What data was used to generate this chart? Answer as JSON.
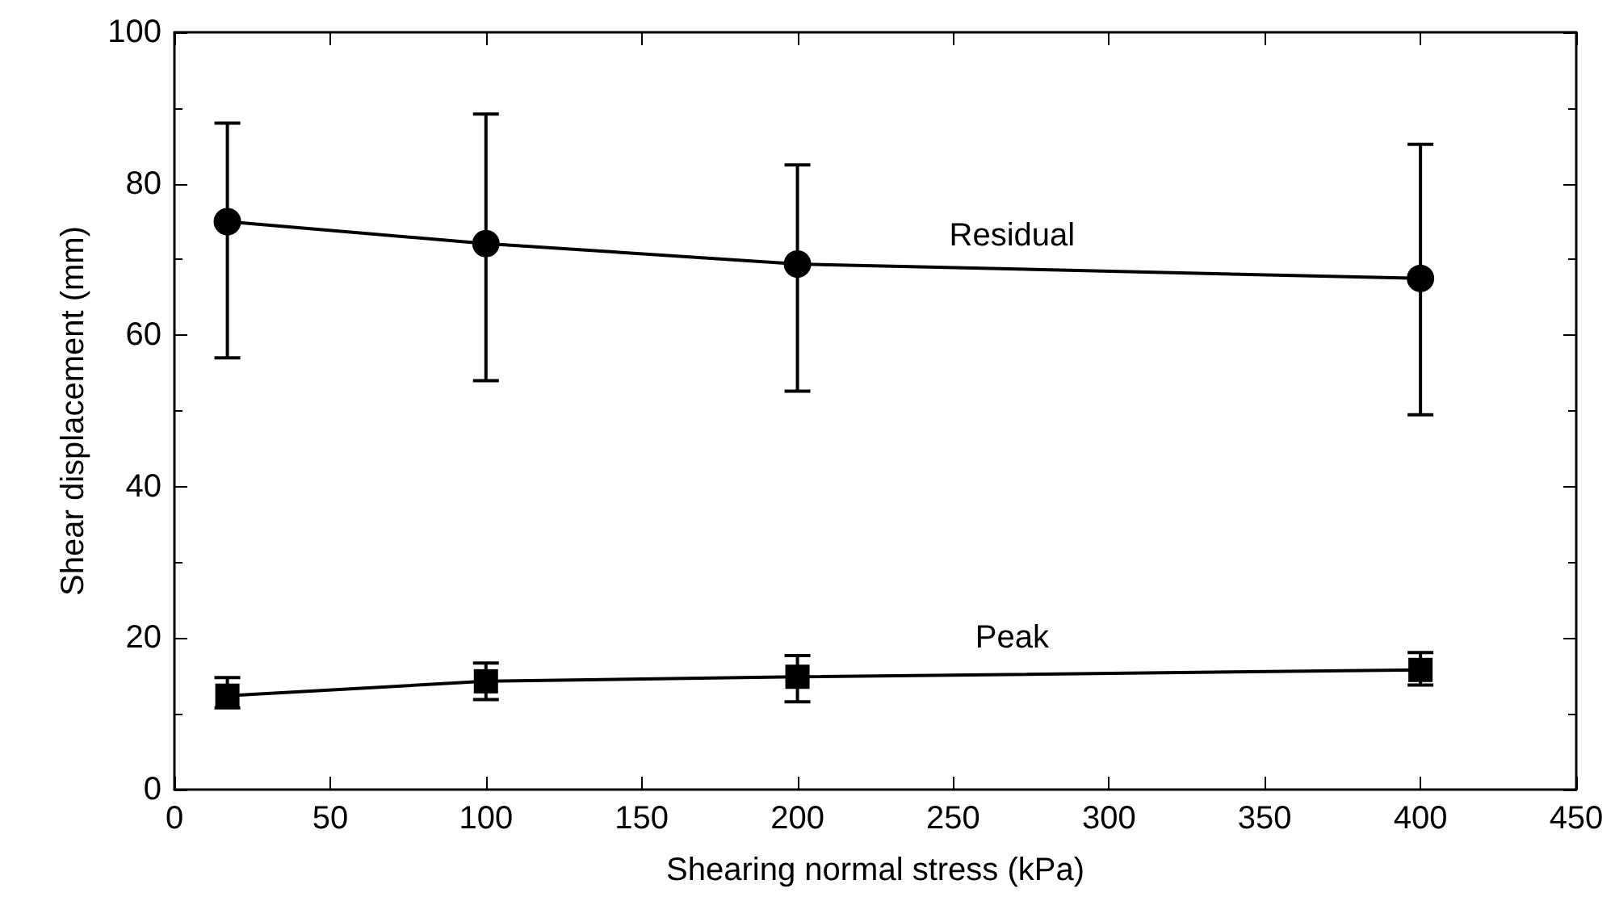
{
  "chart_data": {
    "type": "line",
    "xlabel": "Shearing normal stress (kPa)",
    "ylabel": "Shear displacement (mm)",
    "x": [
      17,
      100,
      200,
      400
    ],
    "series": [
      {
        "name": "Residual",
        "color": "#000000",
        "marker": "circle",
        "values": [
          75,
          72.1,
          69.4,
          67.5
        ],
        "errors": [
          [
            57,
            88
          ],
          [
            54,
            89.2
          ],
          [
            52.6,
            82.5
          ],
          [
            49.5,
            85.2
          ]
        ]
      },
      {
        "name": "Peak",
        "color": "#000000",
        "marker": "square",
        "values": [
          12.4,
          14.3,
          14.9,
          15.8
        ],
        "errors": [
          [
            10.8,
            14.8
          ],
          [
            11.9,
            16.7
          ],
          [
            11.6,
            17.7
          ],
          [
            13.8,
            18.1
          ]
        ]
      }
    ],
    "xlim": [
      0,
      450
    ],
    "xticks": [
      0,
      50,
      100,
      150,
      200,
      250,
      300,
      350,
      400,
      450
    ],
    "ylim": [
      0,
      100
    ],
    "yticks": [
      0,
      20,
      40,
      60,
      80,
      100
    ],
    "grid": false,
    "legend": false,
    "line_style": "solid"
  }
}
